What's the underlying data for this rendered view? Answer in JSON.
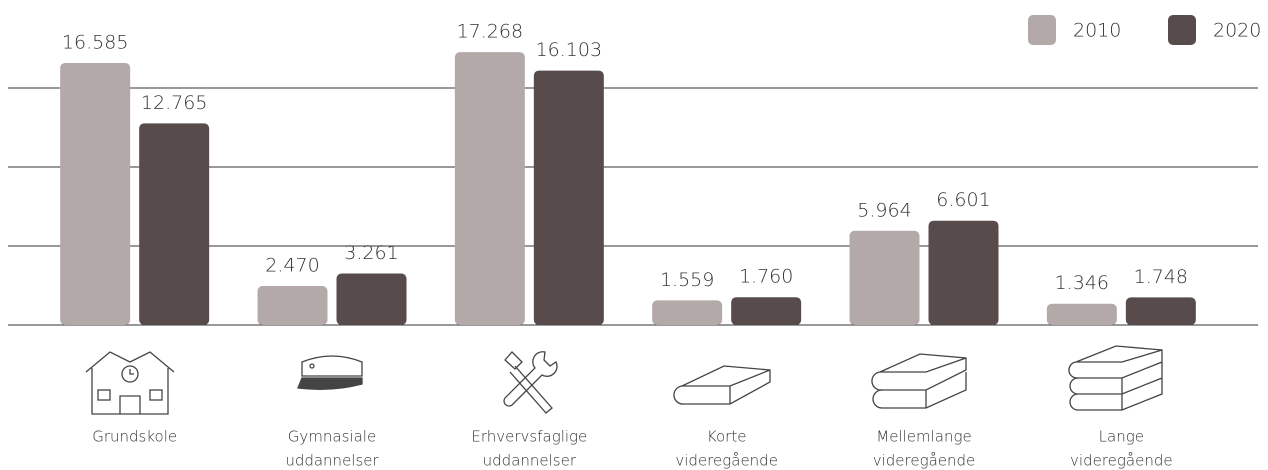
{
  "chart_data": {
    "type": "bar",
    "categories": [
      [
        "Grundskole"
      ],
      [
        "Gymnasiale",
        "uddannelser"
      ],
      [
        "Erhvervsfaglige",
        "uddannelser"
      ],
      [
        "Korte",
        "videregående"
      ],
      [
        "Mellemlange",
        "videregående"
      ],
      [
        "Lange",
        "videregående"
      ]
    ],
    "series": [
      {
        "name": "2010",
        "color": "#b4a9a9",
        "values": [
          16585,
          2470,
          17268,
          1559,
          5964,
          1346
        ],
        "value_labels": [
          "16.585",
          "2.470",
          "17.268",
          "1.559",
          "5.964",
          "1.346"
        ]
      },
      {
        "name": "2020",
        "color": "#574c4b",
        "values": [
          12765,
          3261,
          16103,
          1760,
          6601,
          1748
        ],
        "value_labels": [
          "12.765",
          "3.261",
          "16.103",
          "1.760",
          "6.601",
          "1.748"
        ]
      }
    ],
    "ylim": [
      0,
      20000
    ],
    "yticks": [
      0,
      5000,
      10000,
      15000
    ],
    "grid": true,
    "legend": "top-right"
  }
}
